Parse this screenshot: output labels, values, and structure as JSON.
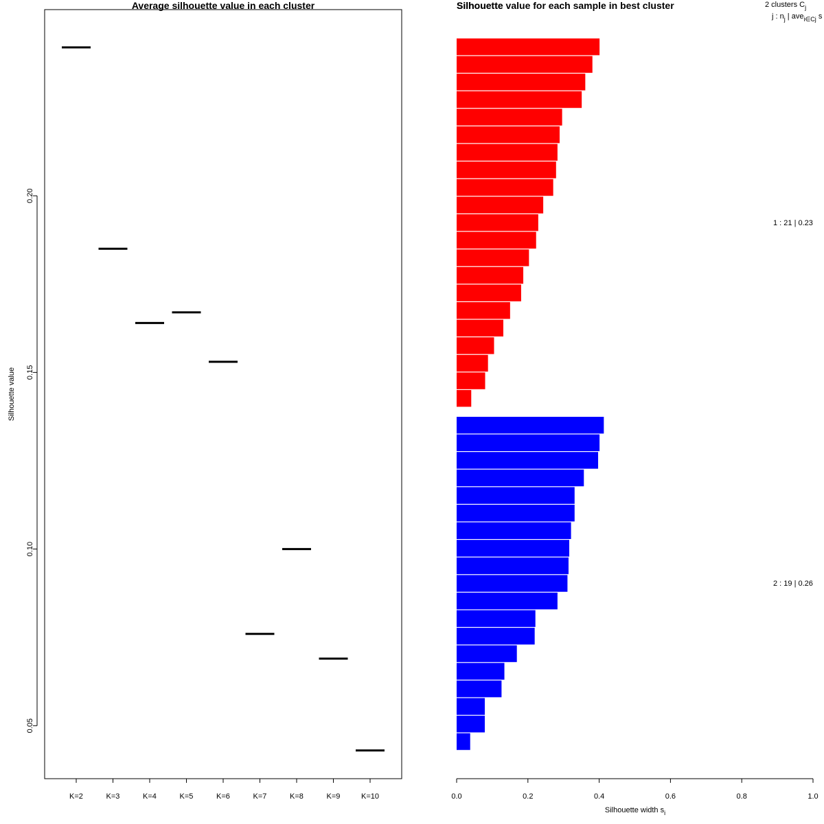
{
  "chart_data": [
    {
      "type": "line",
      "title": "Average silhouette value in each cluster",
      "xlabel": "",
      "ylabel": "Silhouette value",
      "categories": [
        "K=2",
        "K=3",
        "K=4",
        "K=5",
        "K=6",
        "K=7",
        "K=8",
        "K=9",
        "K=10"
      ],
      "values": [
        0.242,
        0.185,
        0.164,
        0.167,
        0.153,
        0.076,
        0.1,
        0.069,
        0.043
      ],
      "yticks": [
        "0.05",
        "0.10",
        "0.15",
        "0.20"
      ],
      "ytick_values": [
        0.05,
        0.1,
        0.15,
        0.2
      ],
      "ylim": [
        0.035,
        0.2527
      ]
    },
    {
      "type": "bar",
      "orientation": "horizontal",
      "title": "Silhouette value for each sample in best cluster",
      "overlap_title": "Silhouette",
      "xlabel": "Silhouette width s",
      "xlabel_sub": "i",
      "xlim": [
        0,
        1
      ],
      "xticks": [
        "0.0",
        "0.2",
        "0.4",
        "0.6",
        "0.8",
        "1.0"
      ],
      "xtick_values": [
        0.0,
        0.2,
        0.4,
        0.6,
        0.8,
        1.0
      ],
      "header_line1": "2  clusters  C",
      "header_line1_sub": "j",
      "header_line2": "j :  n",
      "header_line2_sub1": "j",
      "header_line2_mid": " | ave",
      "header_line2_sub2": "i∈Cj",
      "header_line2_end": "  s",
      "series": [
        {
          "name": "1",
          "n": 21,
          "avg": "0.23",
          "label": "1 :  21  |  0.23",
          "color": "#ff0000",
          "values": [
            0.401,
            0.381,
            0.361,
            0.351,
            0.296,
            0.289,
            0.283,
            0.279,
            0.271,
            0.243,
            0.229,
            0.223,
            0.203,
            0.187,
            0.181,
            0.15,
            0.131,
            0.105,
            0.088,
            0.08,
            0.041
          ]
        },
        {
          "name": "2",
          "n": 19,
          "avg": "0.26",
          "label": "2 :  19  |  0.26",
          "color": "#0000ff",
          "values": [
            0.413,
            0.401,
            0.397,
            0.357,
            0.331,
            0.331,
            0.321,
            0.316,
            0.314,
            0.311,
            0.283,
            0.221,
            0.219,
            0.169,
            0.134,
            0.126,
            0.079,
            0.079,
            0.038
          ]
        }
      ]
    }
  ]
}
